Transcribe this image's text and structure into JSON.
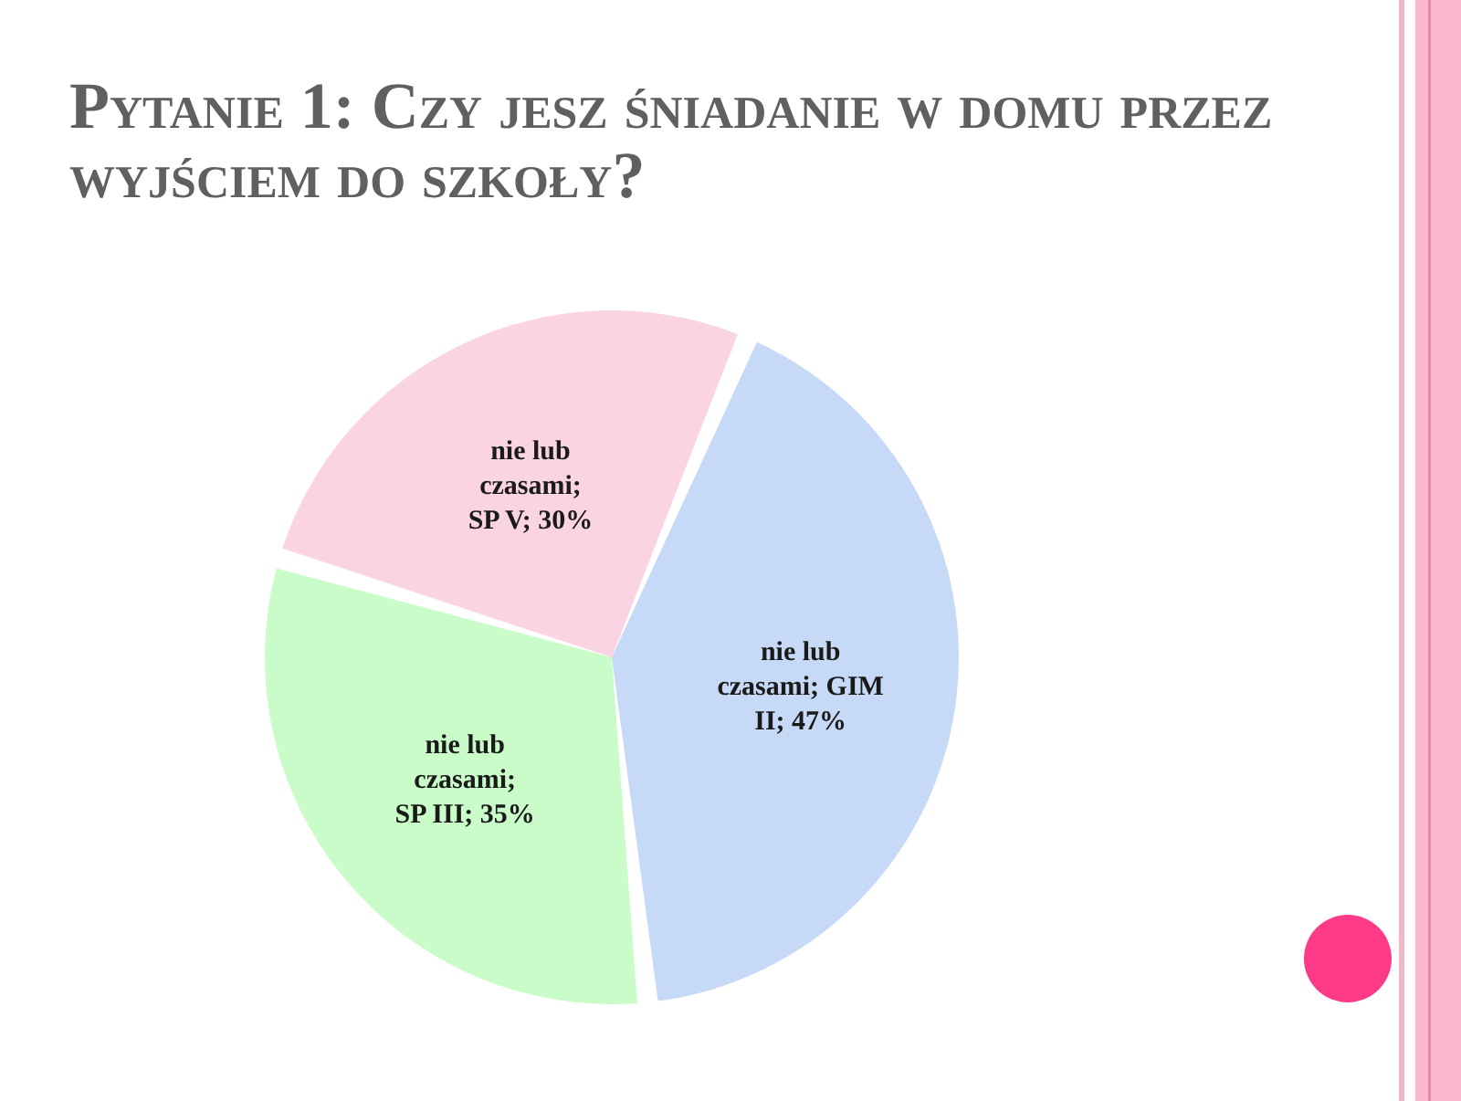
{
  "chart_data": {
    "type": "pie",
    "title": "Pytanie 1: Czy jesz śniadanie w domu przez wyjściem do szkoły?",
    "categories": [
      "nie lub czasami; GIM II",
      "nie lub czasami; SP III",
      "nie lub czasami; SP V"
    ],
    "values": [
      47,
      35,
      30
    ],
    "colors": [
      "#c6d9f6",
      "#c9fcc9",
      "#fbd4e4"
    ],
    "value_labels": [
      "47%",
      "35%",
      "30%"
    ]
  }
}
